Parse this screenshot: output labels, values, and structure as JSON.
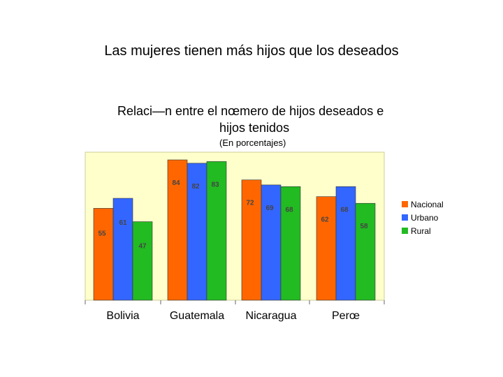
{
  "slide": {
    "title": "Las mujeres tienen más hijos que los deseados"
  },
  "chart_data": {
    "type": "bar",
    "title_line1": "Relaci—n entre el nœmero de hijos  deseados e",
    "title_line2": "hijos tenidos",
    "subtitle": "(En porcentajes)",
    "categories": [
      "Bolivia",
      "Guatemala",
      "Nicaragua",
      "Perœ"
    ],
    "series": [
      {
        "name": "Nacional",
        "color": "#ff6600",
        "values": [
          55,
          84,
          72,
          62
        ]
      },
      {
        "name": "Urbano",
        "color": "#3366ff",
        "values": [
          61,
          82,
          69,
          68
        ]
      },
      {
        "name": "Rural",
        "color": "#22bb22",
        "values": [
          47,
          83,
          68,
          58
        ]
      }
    ],
    "ylim": [
      0,
      100
    ],
    "legend_position": "right",
    "plot_background": "#ffffcc",
    "grid": false
  }
}
